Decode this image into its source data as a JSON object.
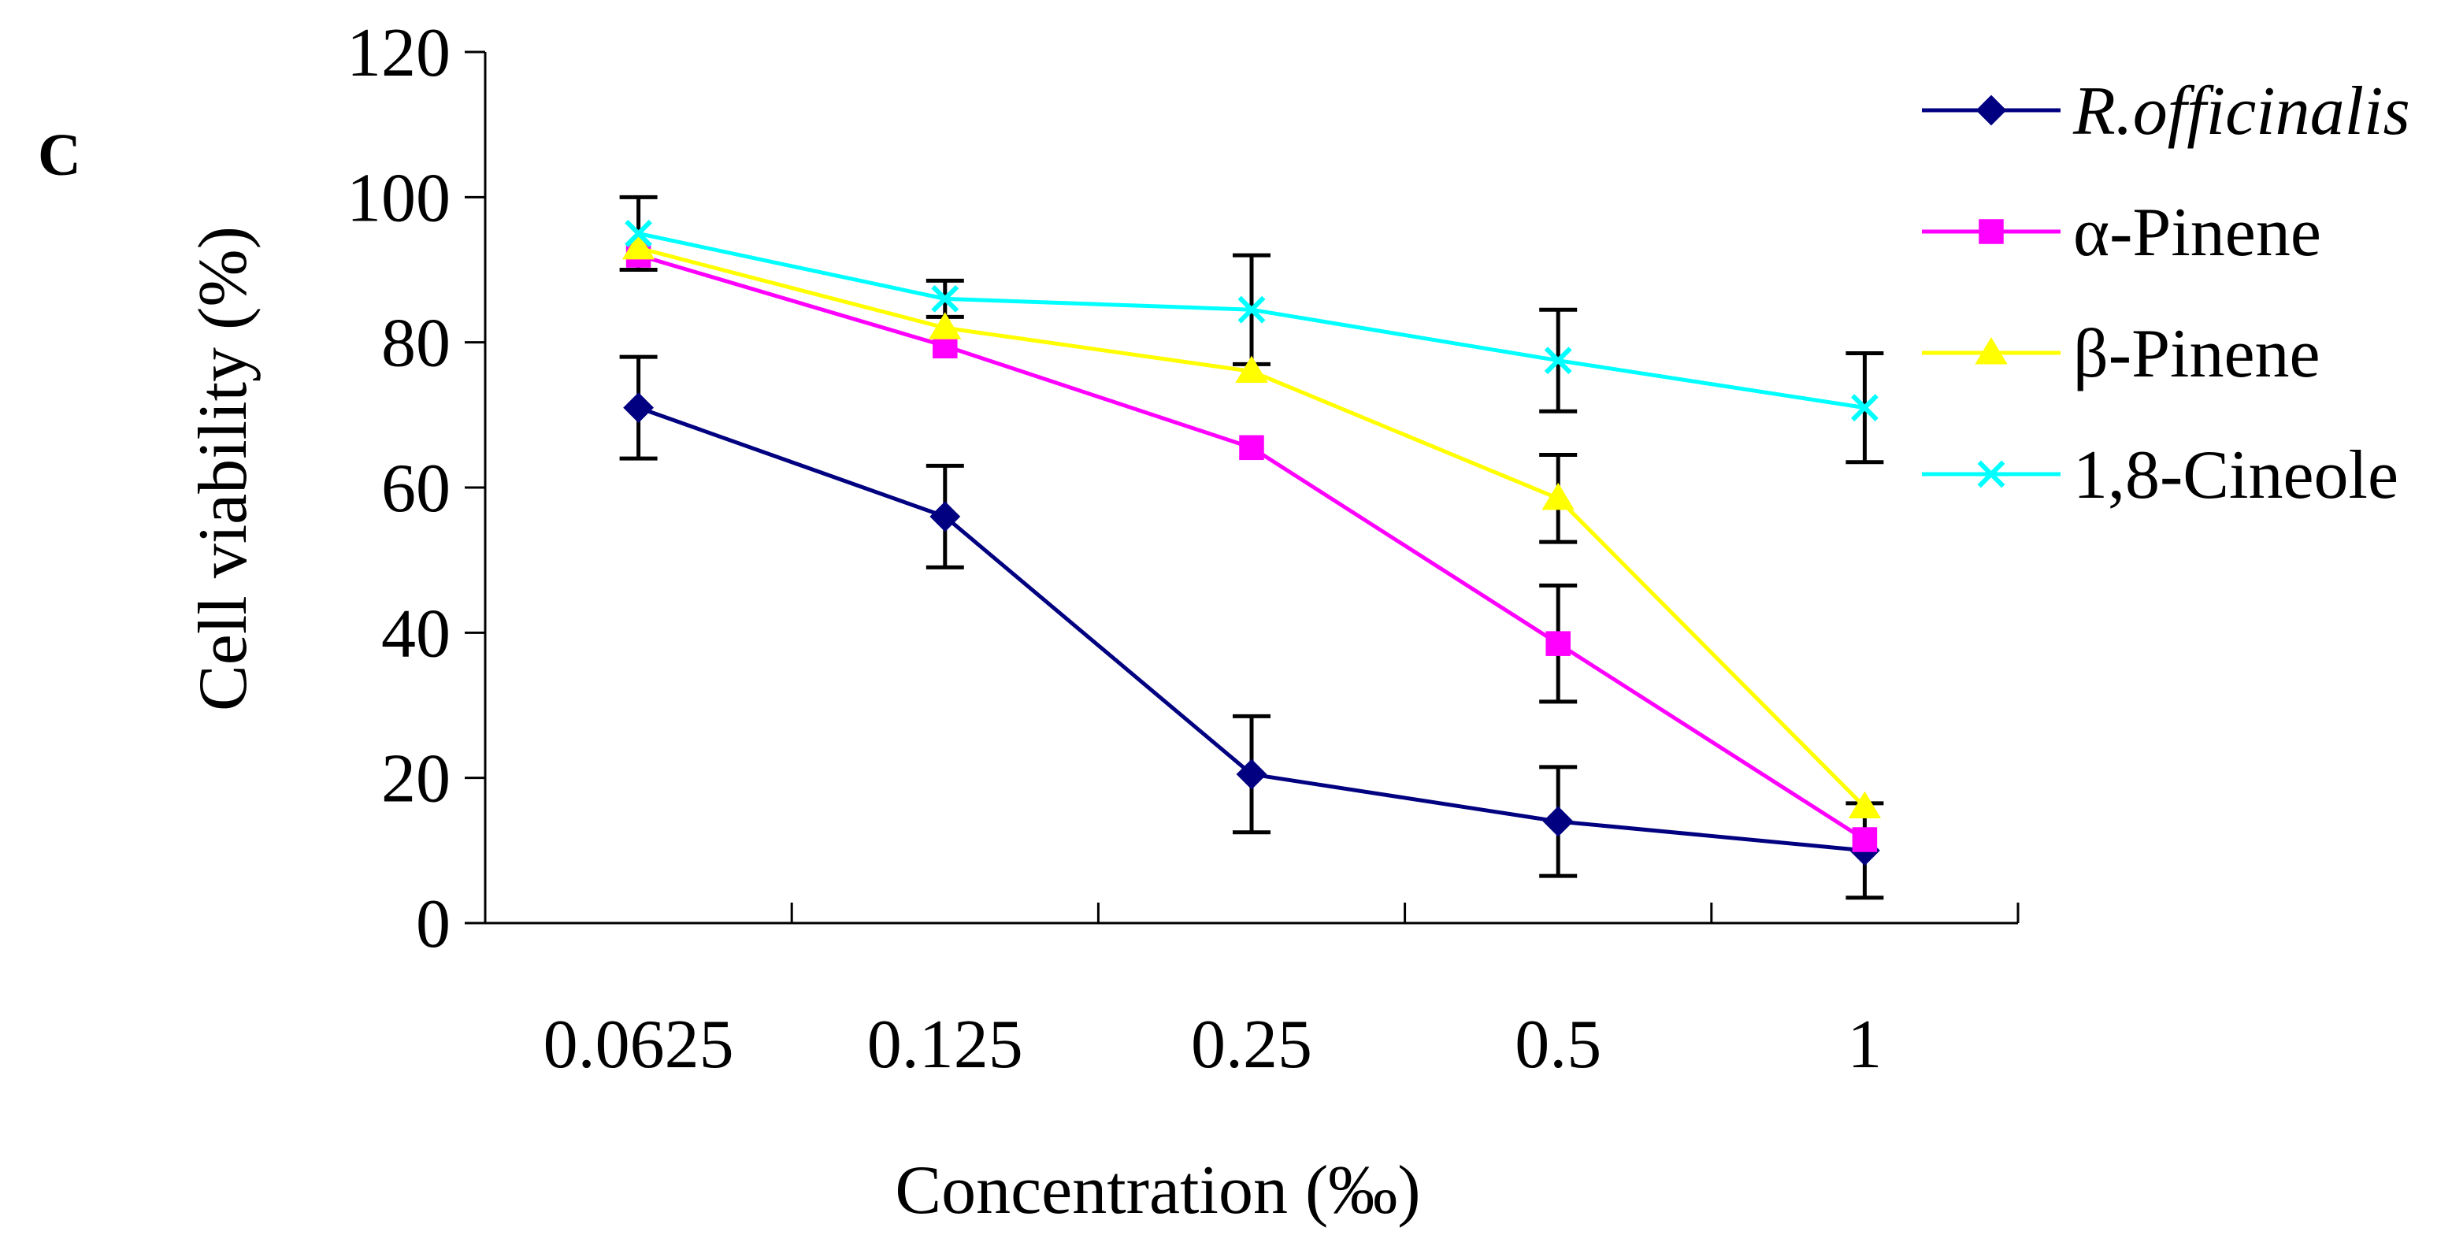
{
  "panel_label": "C",
  "chart_data": {
    "type": "line",
    "title": "",
    "xlabel": "Concentration (‰)",
    "ylabel": "Cell viability (%)",
    "categories": [
      "0.0625",
      "0.125",
      "0.25",
      "0.5",
      "1"
    ],
    "ylim": [
      0,
      120
    ],
    "yticks": [
      0,
      20,
      40,
      60,
      80,
      100,
      120
    ],
    "grid": false,
    "legend_position": "right",
    "series": [
      {
        "name": "R.officinalis",
        "italic": true,
        "color": "#000080",
        "marker": "diamond",
        "values": [
          71,
          56,
          20.5,
          14,
          10
        ],
        "errors": [
          7,
          7,
          8,
          7.5,
          6.5
        ]
      },
      {
        "name": "α-Pinene",
        "italic": false,
        "color": "#FF00FF",
        "marker": "square",
        "values": [
          92,
          79.5,
          65.5,
          38.5,
          11.5
        ],
        "errors": [
          0,
          0,
          0,
          8,
          0
        ]
      },
      {
        "name": "β-Pinene",
        "italic": false,
        "color": "#FFFF00",
        "marker": "triangle",
        "values": [
          93,
          82,
          76,
          58.5,
          16
        ],
        "errors": [
          0,
          0,
          0,
          6,
          0
        ]
      },
      {
        "name": "1,8-Cineole",
        "italic": false,
        "color": "#00FFFF",
        "marker": "x",
        "values": [
          95,
          86,
          84.5,
          77.5,
          71
        ],
        "errors": [
          5,
          2.5,
          7.5,
          7,
          7.5
        ]
      }
    ]
  }
}
